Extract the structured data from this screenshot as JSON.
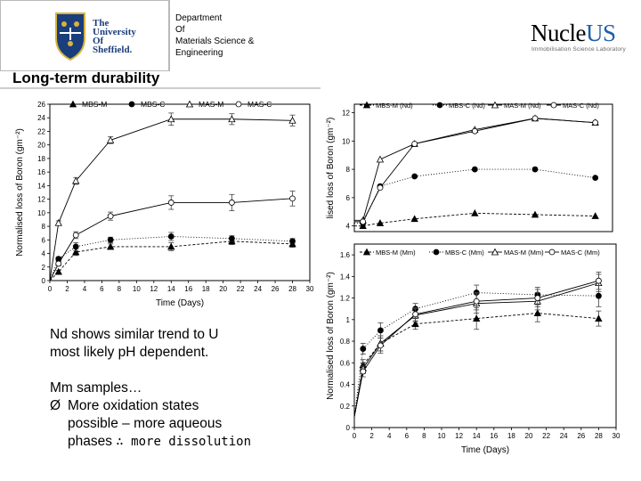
{
  "header": {
    "university_lines": [
      "The",
      "University",
      "Of",
      "Sheffield."
    ],
    "department_lines": [
      "Department",
      "Of",
      "Materials Science &",
      "Engineering"
    ],
    "nucleus_main": "Nucle",
    "nucleus_accent": "US",
    "nucleus_tagline": "Immobilisation Science Laboratory",
    "colors": {
      "crest_blue": "#1a3d7c",
      "crest_gold": "#d8b33c",
      "nucleus_accent": "#1f5fa8"
    }
  },
  "slide_title": "Long-term durability",
  "body": {
    "line1": "Nd shows similar trend to U",
    "line2": "most likely pH dependent.",
    "line3": "Mm samples…",
    "bullet_mark": "Ø",
    "bullet_line1": "More oxidation states",
    "bullet_line2": "possible – more aqueous",
    "bullet_line3": "phases ",
    "bullet_line3_tail": "∴ more dissolution"
  },
  "chart_data": [
    {
      "type": "line",
      "xlabel": "Time (Days)",
      "ylabel": "Normalised loss of Boron (gm⁻²)",
      "xlim": [
        0,
        30
      ],
      "ylim": [
        0,
        26
      ],
      "xticks": [
        0,
        2,
        4,
        6,
        8,
        10,
        12,
        14,
        16,
        18,
        20,
        22,
        24,
        26,
        28,
        30
      ],
      "yticks": [
        0,
        2,
        4,
        6,
        8,
        10,
        12,
        14,
        16,
        18,
        20,
        22,
        24,
        26
      ],
      "legend_position": "top",
      "x": [
        0,
        1,
        3,
        7,
        14,
        21,
        28
      ],
      "series": [
        {
          "name": "MBS-M",
          "marker": "triangle-filled",
          "dash": "3,2",
          "values": [
            0,
            1.3,
            4.2,
            5.0,
            5.0,
            5.8,
            5.4
          ],
          "errors": [
            0,
            0.2,
            0.5,
            0.4,
            0.6,
            0.5,
            0.5
          ]
        },
        {
          "name": "MBS-C",
          "marker": "circle-filled",
          "dash": "1,2",
          "values": [
            0,
            3.2,
            5.0,
            6.0,
            6.5,
            6.2,
            5.8
          ],
          "errors": [
            0,
            0.3,
            0.6,
            0.4,
            0.6,
            0.4,
            0.4
          ]
        },
        {
          "name": "MAS-M",
          "marker": "triangle-open",
          "dash": "",
          "values": [
            0,
            8.5,
            14.7,
            20.7,
            23.8,
            23.8,
            23.6
          ],
          "errors": [
            0,
            0.3,
            0.5,
            0.5,
            0.9,
            0.8,
            0.8
          ]
        },
        {
          "name": "MAS-C",
          "marker": "circle-open",
          "dash": "",
          "values": [
            0,
            2.5,
            6.7,
            9.5,
            11.5,
            11.5,
            12.1
          ],
          "errors": [
            0,
            0.3,
            0.5,
            0.6,
            1.0,
            1.2,
            1.1
          ]
        }
      ]
    },
    {
      "type": "line",
      "xlabel": "",
      "ylabel": "lised loss of Boron (gm⁻²)",
      "xlim": [
        0,
        30
      ],
      "ylim": [
        3.6,
        12.6
      ],
      "xticks": [],
      "yticks": [
        4,
        6,
        8,
        10,
        12
      ],
      "legend_position": "top",
      "x": [
        0,
        1,
        3,
        7,
        14,
        21,
        28
      ],
      "series": [
        {
          "name": "MBS-M (Nd)",
          "marker": "triangle-filled",
          "dash": "3,2",
          "values": [
            4.0,
            4.0,
            4.2,
            4.5,
            4.9,
            4.8,
            4.7
          ]
        },
        {
          "name": "MBS-C (Nd)",
          "marker": "circle-filled",
          "dash": "1,2",
          "values": [
            4.2,
            4.2,
            6.8,
            7.5,
            8.0,
            8.0,
            7.4
          ]
        },
        {
          "name": "MAS-M (Nd)",
          "marker": "triangle-open",
          "dash": "",
          "values": [
            4.4,
            4.4,
            8.7,
            9.8,
            10.8,
            11.6,
            11.3
          ]
        },
        {
          "name": "MAS-C (Nd)",
          "marker": "circle-open",
          "dash": "",
          "values": [
            4.3,
            4.3,
            6.7,
            9.8,
            10.7,
            11.6,
            11.3
          ]
        }
      ]
    },
    {
      "type": "line",
      "xlabel": "Time (Days)",
      "ylabel": "Normalised loss of Boron (gm⁻²)",
      "xlim": [
        0,
        30
      ],
      "ylim": [
        0,
        1.7
      ],
      "xticks": [
        0,
        2,
        4,
        6,
        8,
        10,
        12,
        14,
        16,
        18,
        20,
        22,
        24,
        26,
        28,
        30
      ],
      "yticks": [
        0,
        0.2,
        0.4,
        0.6,
        0.8,
        1.0,
        1.2,
        1.4,
        1.6
      ],
      "legend_position": "top",
      "x": [
        0,
        1,
        3,
        7,
        14,
        21,
        28
      ],
      "series": [
        {
          "name": "MBS-M (Mm)",
          "marker": "triangle-filled",
          "dash": "3,2",
          "values": [
            0.1,
            0.58,
            0.78,
            0.96,
            1.01,
            1.06,
            1.01
          ],
          "errors": [
            0,
            0.05,
            0.07,
            0.05,
            0.1,
            0.08,
            0.07
          ]
        },
        {
          "name": "MBS-C (Mm)",
          "marker": "circle-filled",
          "dash": "1,2",
          "values": [
            0.1,
            0.73,
            0.9,
            1.1,
            1.25,
            1.23,
            1.22
          ],
          "errors": [
            0,
            0.05,
            0.07,
            0.05,
            0.07,
            0.07,
            0.1
          ]
        },
        {
          "name": "MAS-M (Mm)",
          "marker": "triangle-open",
          "dash": "",
          "values": [
            0.1,
            0.55,
            0.78,
            1.04,
            1.15,
            1.17,
            1.34
          ],
          "errors": [
            0,
            0.05,
            0.07,
            0.06,
            0.09,
            0.08,
            0.08
          ]
        },
        {
          "name": "MAS-C (Mm)",
          "marker": "circle-open",
          "dash": "",
          "values": [
            0.1,
            0.52,
            0.76,
            1.05,
            1.17,
            1.2,
            1.36
          ],
          "errors": [
            0,
            0.05,
            0.07,
            0.06,
            0.08,
            0.08,
            0.08
          ]
        }
      ]
    }
  ]
}
